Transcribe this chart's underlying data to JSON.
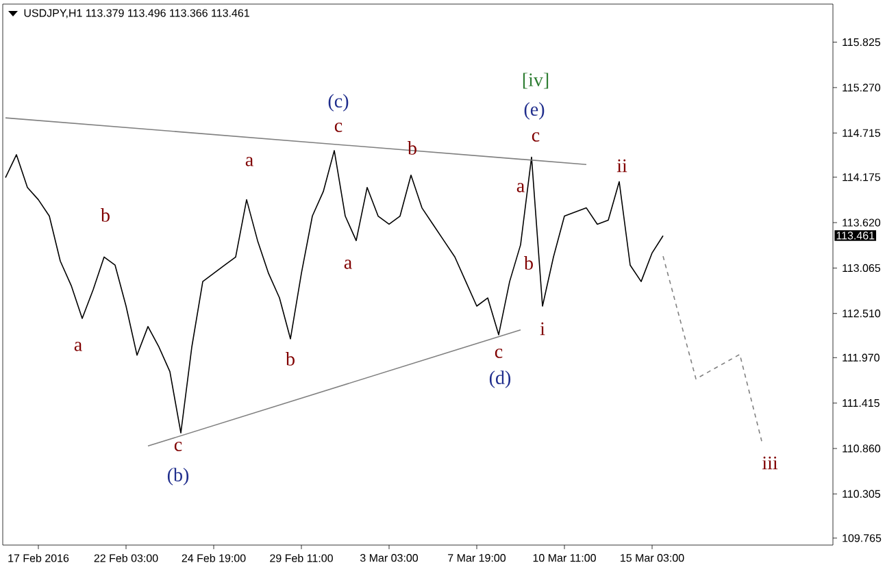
{
  "chart_data": {
    "type": "line",
    "title": "USDJPY,H1 113.379 113.496 113.366 113.461",
    "categories": [
      null,
      null,
      null,
      "17 Feb 2016",
      null,
      null,
      null,
      null,
      null,
      null,
      null,
      "22 Feb 03:00",
      null,
      null,
      null,
      null,
      null,
      null,
      null,
      "24 Feb 19:00",
      null,
      null,
      null,
      null,
      null,
      null,
      null,
      "29 Feb 11:00",
      null,
      null,
      null,
      null,
      null,
      null,
      null,
      "3 Mar 03:00",
      null,
      null,
      null,
      null,
      null,
      null,
      null,
      "7 Mar 19:00",
      null,
      null,
      null,
      null,
      null,
      null,
      null,
      "10 Mar 11:00",
      null,
      null,
      null,
      null,
      null,
      null,
      null,
      "15 Mar 03:00",
      null,
      null,
      null,
      null,
      null,
      null,
      null,
      null,
      null,
      null,
      null,
      null,
      null,
      null,
      null,
      null
    ],
    "ylim": [
      109.68,
      116.29
    ],
    "yticks": [
      {
        "value": 115.825,
        "label": "115.825"
      },
      {
        "value": 115.27,
        "label": "115.270"
      },
      {
        "value": 114.715,
        "label": "114.715"
      },
      {
        "value": 114.175,
        "label": "114.175"
      },
      {
        "value": 113.62,
        "label": "113.620"
      },
      {
        "value": 113.065,
        "label": "113.065"
      },
      {
        "value": 112.51,
        "label": "112.510"
      },
      {
        "value": 111.97,
        "label": "111.970"
      },
      {
        "value": 111.415,
        "label": "111.415"
      },
      {
        "value": 110.86,
        "label": "110.860"
      },
      {
        "value": 110.305,
        "label": "110.305"
      },
      {
        "value": 109.765,
        "label": "109.765"
      }
    ],
    "series": [
      {
        "color": "#000000",
        "line_style": "solid",
        "values": [
          114.17,
          114.45,
          114.05,
          113.9,
          113.7,
          113.15,
          112.85,
          112.45,
          112.8,
          113.2,
          113.1,
          112.6,
          112.0,
          112.35,
          112.1,
          111.8,
          111.05,
          112.1,
          112.9,
          113.0,
          113.1,
          113.2,
          113.9,
          113.4,
          113.0,
          112.7,
          112.2,
          113.0,
          113.7,
          114.0,
          114.5,
          113.7,
          113.4,
          114.05,
          113.7,
          113.6,
          113.7,
          114.2,
          113.8,
          113.6,
          113.4,
          113.2,
          112.9,
          112.6,
          112.7,
          112.25,
          112.9,
          113.35,
          114.42,
          112.6,
          113.2,
          113.7,
          113.75,
          113.8,
          113.6,
          113.65,
          114.12,
          113.1,
          112.9,
          113.25,
          113.46,
          null,
          null,
          null,
          null,
          null,
          null,
          null,
          null,
          null,
          null,
          null,
          null,
          null,
          null,
          null
        ]
      },
      {
        "color": "#808080",
        "line_style": "dashed",
        "values": [
          null,
          null,
          null,
          null,
          null,
          null,
          null,
          null,
          null,
          null,
          null,
          null,
          null,
          null,
          null,
          null,
          null,
          null,
          null,
          null,
          null,
          null,
          null,
          null,
          null,
          null,
          null,
          null,
          null,
          null,
          null,
          null,
          null,
          null,
          null,
          null,
          null,
          null,
          null,
          null,
          null,
          null,
          null,
          null,
          null,
          null,
          null,
          null,
          null,
          null,
          null,
          null,
          null,
          null,
          null,
          null,
          null,
          null,
          null,
          null,
          113.21,
          null,
          null,
          111.71,
          null,
          null,
          null,
          112.01,
          null,
          110.95,
          null,
          null,
          null,
          null,
          null,
          null
        ]
      },
      {
        "color": "#808080",
        "line_style": "solid",
        "values": [
          114.9,
          null,
          null,
          null,
          null,
          null,
          null,
          null,
          null,
          null,
          null,
          null,
          null,
          null,
          null,
          null,
          null,
          null,
          null,
          null,
          null,
          null,
          null,
          null,
          null,
          null,
          null,
          null,
          null,
          null,
          null,
          null,
          null,
          null,
          null,
          null,
          null,
          null,
          null,
          null,
          null,
          null,
          null,
          null,
          null,
          null,
          null,
          null,
          null,
          null,
          null,
          null,
          null,
          114.33,
          null,
          null,
          null,
          null,
          null,
          null,
          null,
          null,
          null,
          null,
          null,
          null,
          null,
          null,
          null,
          null,
          null,
          null,
          null,
          null,
          null,
          null
        ]
      },
      {
        "color": "#808080",
        "line_style": "solid",
        "values": [
          null,
          null,
          null,
          null,
          null,
          null,
          null,
          null,
          null,
          null,
          null,
          null,
          null,
          110.89,
          null,
          null,
          null,
          null,
          null,
          null,
          null,
          null,
          null,
          null,
          null,
          null,
          null,
          null,
          null,
          null,
          null,
          null,
          null,
          null,
          null,
          null,
          null,
          null,
          null,
          null,
          null,
          null,
          null,
          null,
          null,
          null,
          null,
          112.31,
          null,
          null,
          null,
          null,
          null,
          null,
          null,
          null,
          null,
          null,
          null,
          null,
          null,
          null,
          null,
          null,
          null,
          null,
          null,
          null,
          null,
          null,
          null,
          null,
          null,
          null,
          null,
          null
        ]
      }
    ],
    "annotations": [
      "a",
      "b",
      "c",
      "(b)",
      "a",
      "b",
      "c",
      "(c)",
      "a",
      "b",
      "c",
      "(d)",
      "a",
      "b",
      "c",
      "(e)",
      "[iv]",
      "i",
      "ii",
      "iii",
      "113.461"
    ]
  }
}
